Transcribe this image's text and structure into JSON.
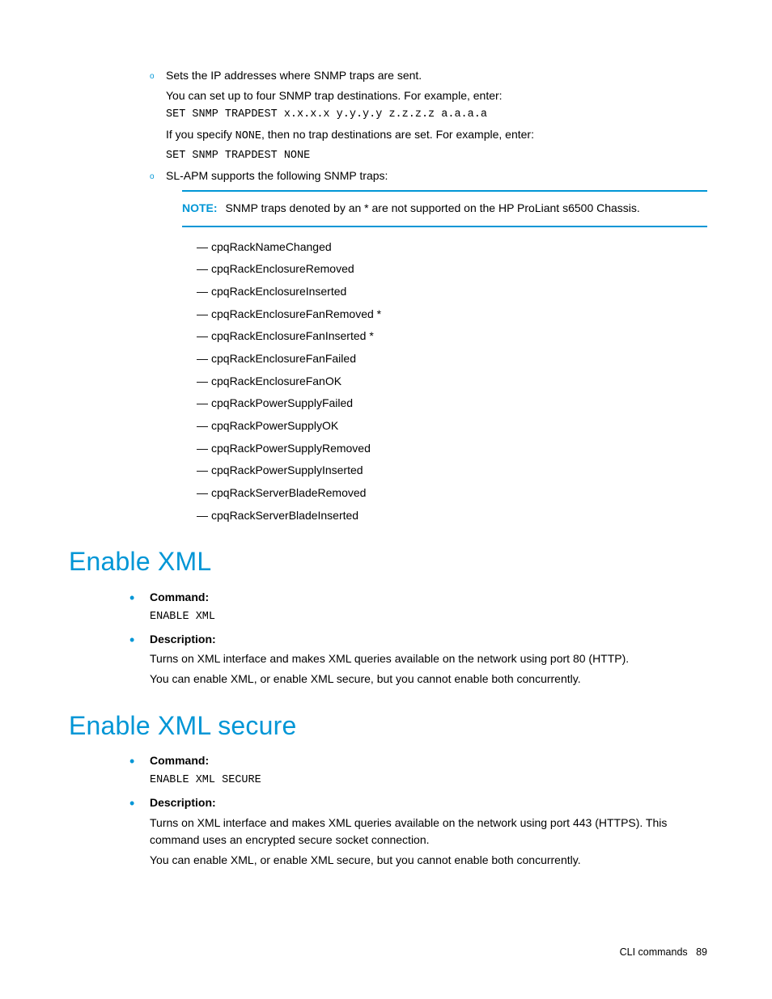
{
  "top_section": {
    "item1": {
      "intro": "Sets the IP addresses where SNMP traps are sent.",
      "line1": "You can set up to four SNMP trap destinations. For example, enter:",
      "code1": "SET SNMP TRAPDEST x.x.x.x y.y.y.y z.z.z.z a.a.a.a",
      "line2_prefix": "If you specify ",
      "line2_code": "NONE",
      "line2_suffix": ", then no trap destinations are set. For example, enter:",
      "code2": "SET SNMP TRAPDEST NONE"
    },
    "item2": {
      "intro": "SL-APM supports the following SNMP traps:",
      "note_label": "NOTE:",
      "note_text": "SNMP traps denoted by an * are not supported on the HP ProLiant s6500 Chassis.",
      "traps": [
        "cpqRackNameChanged",
        "cpqRackEnclosureRemoved",
        "cpqRackEnclosureInserted",
        "cpqRackEnclosureFanRemoved *",
        "cpqRackEnclosureFanInserted *",
        "cpqRackEnclosureFanFailed",
        "cpqRackEnclosureFanOK",
        "cpqRackPowerSupplyFailed",
        "cpqRackPowerSupplyOK",
        "cpqRackPowerSupplyRemoved",
        "cpqRackPowerSupplyInserted",
        "cpqRackServerBladeRemoved",
        "cpqRackServerBladeInserted"
      ]
    }
  },
  "section1": {
    "heading": "Enable XML",
    "cmd_label": "Command:",
    "cmd": "ENABLE XML",
    "desc_label": "Description:",
    "desc1": "Turns on XML interface and makes XML queries available on the network using port 80 (HTTP).",
    "desc2": "You can enable XML, or enable XML secure, but you cannot enable both concurrently."
  },
  "section2": {
    "heading": "Enable XML secure",
    "cmd_label": "Command:",
    "cmd": "ENABLE XML SECURE",
    "desc_label": "Description:",
    "desc1": "Turns on XML interface and makes XML queries available on the network using port 443 (HTTPS). This command uses an encrypted secure socket connection.",
    "desc2": "You can enable XML, or enable XML secure, but you cannot enable both concurrently."
  },
  "footer": {
    "text": "CLI commands",
    "page": "89"
  }
}
